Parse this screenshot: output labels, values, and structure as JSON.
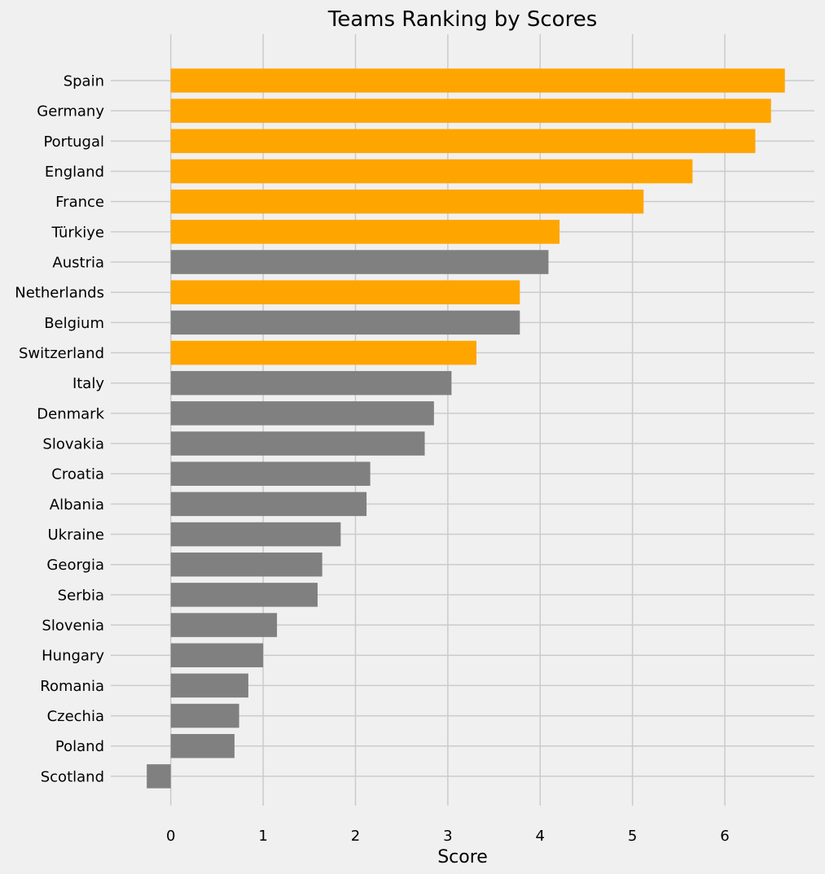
{
  "chart_data": {
    "type": "bar",
    "orientation": "horizontal",
    "title": "Teams Ranking by Scores",
    "xlabel": "Score",
    "ylabel": "",
    "xlim": [
      -0.65,
      6.97
    ],
    "xticks": [
      0,
      1,
      2,
      3,
      4,
      5,
      6
    ],
    "grid": true,
    "categories": [
      "Spain",
      "Germany",
      "Portugal",
      "England",
      "France",
      "Türkiye",
      "Austria",
      "Netherlands",
      "Belgium",
      "Switzerland",
      "Italy",
      "Denmark",
      "Slovakia",
      "Croatia",
      "Albania",
      "Ukraine",
      "Georgia",
      "Serbia",
      "Slovenia",
      "Hungary",
      "Romania",
      "Czechia",
      "Poland",
      "Scotland"
    ],
    "values": [
      6.65,
      6.5,
      6.33,
      5.65,
      5.12,
      4.21,
      4.09,
      3.78,
      3.78,
      3.31,
      3.04,
      2.85,
      2.75,
      2.16,
      2.12,
      1.84,
      1.64,
      1.59,
      1.15,
      1.0,
      0.84,
      0.74,
      0.69,
      -0.26
    ],
    "highlighted": [
      true,
      true,
      true,
      true,
      true,
      true,
      false,
      true,
      false,
      true,
      false,
      false,
      false,
      false,
      false,
      false,
      false,
      false,
      false,
      false,
      false,
      false,
      false,
      false
    ],
    "colors": {
      "highlight": "#ffa500",
      "default": "#808080",
      "background": "#f0f0f0",
      "grid": "#cbcbcb"
    }
  }
}
